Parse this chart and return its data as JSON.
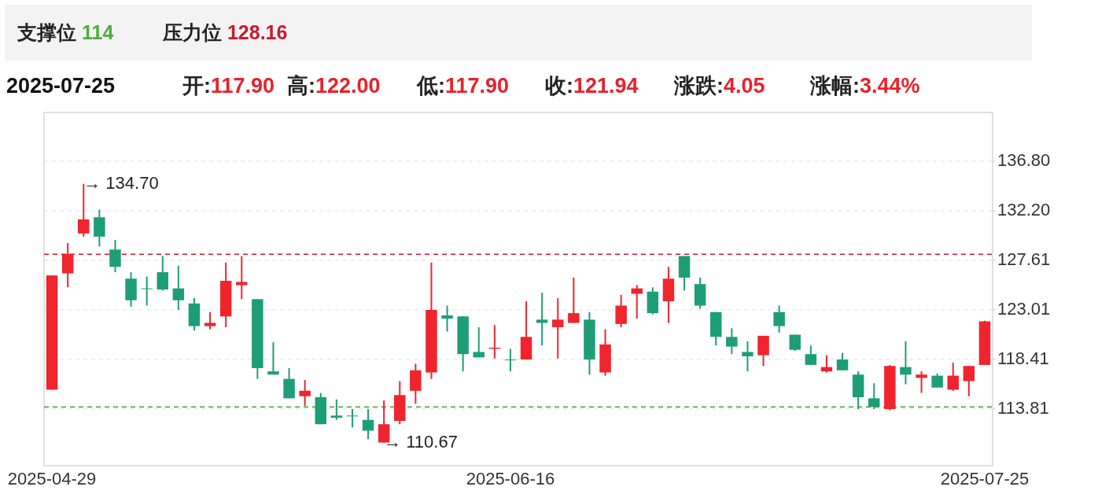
{
  "chart_data": {
    "type": "candlestick",
    "categories": [
      "2025-04-29",
      null,
      null,
      null,
      null,
      null,
      null,
      null,
      null,
      null,
      null,
      null,
      null,
      null,
      null,
      null,
      null,
      null,
      null,
      null,
      null,
      null,
      null,
      null,
      null,
      null,
      null,
      null,
      null,
      "2025-06-16",
      null,
      null,
      null,
      null,
      null,
      null,
      null,
      null,
      null,
      null,
      null,
      null,
      null,
      null,
      null,
      null,
      null,
      null,
      null,
      null,
      null,
      null,
      null,
      null,
      null,
      null,
      null,
      null,
      null,
      "2025-07-25"
    ],
    "ohlc": [
      [
        115.6,
        126.2,
        115.6,
        126.2
      ],
      [
        126.4,
        129.2,
        125.1,
        128.2
      ],
      [
        130.1,
        134.7,
        129.8,
        131.4
      ],
      [
        131.6,
        132.3,
        128.9,
        129.8
      ],
      [
        128.6,
        129.5,
        126.5,
        127.0
      ],
      [
        125.9,
        126.5,
        123.3,
        123.9
      ],
      [
        125.0,
        126.1,
        123.4,
        125.0
      ],
      [
        126.5,
        128.0,
        124.8,
        124.9
      ],
      [
        125.0,
        127.1,
        123.0,
        123.9
      ],
      [
        123.6,
        124.1,
        121.1,
        121.5
      ],
      [
        121.5,
        122.8,
        121.2,
        121.8
      ],
      [
        122.4,
        127.4,
        121.4,
        125.7
      ],
      [
        125.3,
        128.0,
        124.0,
        125.6
      ],
      [
        124.0,
        124.0,
        116.6,
        117.6
      ],
      [
        117.3,
        120.0,
        117.0,
        117.0
      ],
      [
        116.6,
        117.6,
        114.8,
        114.8
      ],
      [
        115.0,
        116.5,
        114.1,
        115.5
      ],
      [
        114.9,
        115.3,
        112.4,
        112.4
      ],
      [
        113.2,
        114.7,
        112.8,
        113.0
      ],
      [
        113.2,
        113.8,
        112.1,
        113.2
      ],
      [
        112.8,
        113.8,
        111.0,
        111.8
      ],
      [
        110.7,
        114.6,
        110.67,
        112.4
      ],
      [
        112.7,
        116.4,
        112.4,
        115.1
      ],
      [
        115.5,
        118.0,
        114.3,
        117.4
      ],
      [
        117.2,
        127.4,
        116.6,
        123.0
      ],
      [
        122.5,
        123.4,
        121.0,
        122.2
      ],
      [
        122.4,
        122.4,
        117.3,
        118.9
      ],
      [
        119.1,
        121.4,
        118.6,
        118.6
      ],
      [
        119.4,
        121.6,
        118.5,
        119.5
      ],
      [
        118.4,
        119.4,
        117.3,
        118.4
      ],
      [
        118.4,
        123.8,
        118.4,
        120.5
      ],
      [
        122.1,
        124.6,
        119.7,
        121.8
      ],
      [
        121.4,
        124.1,
        118.5,
        122.1
      ],
      [
        121.8,
        126.0,
        121.8,
        122.7
      ],
      [
        122.1,
        122.8,
        117.0,
        118.4
      ],
      [
        117.2,
        121.2,
        116.9,
        119.8
      ],
      [
        121.7,
        124.4,
        121.4,
        123.4
      ],
      [
        124.5,
        125.3,
        122.2,
        125.0
      ],
      [
        124.7,
        125.1,
        122.6,
        122.7
      ],
      [
        123.8,
        127.0,
        121.8,
        125.9
      ],
      [
        128.0,
        128.0,
        124.8,
        126.0
      ],
      [
        125.4,
        126.0,
        123.1,
        123.4
      ],
      [
        122.8,
        122.8,
        119.7,
        120.5
      ],
      [
        120.5,
        121.3,
        118.9,
        119.6
      ],
      [
        119.1,
        120.1,
        117.3,
        118.7
      ],
      [
        118.8,
        120.6,
        117.8,
        120.6
      ],
      [
        122.8,
        123.4,
        120.9,
        121.5
      ],
      [
        120.7,
        120.7,
        119.2,
        119.3
      ],
      [
        118.9,
        119.7,
        117.9,
        117.9
      ],
      [
        117.3,
        118.8,
        117.2,
        117.7
      ],
      [
        118.4,
        119.0,
        117.4,
        117.4
      ],
      [
        117.0,
        117.3,
        113.8,
        114.9
      ],
      [
        114.8,
        116.2,
        113.8,
        114.0
      ],
      [
        113.8,
        117.9,
        113.7,
        117.8
      ],
      [
        117.7,
        120.1,
        116.1,
        117.0
      ],
      [
        116.7,
        117.3,
        115.3,
        117.0
      ],
      [
        116.9,
        117.1,
        115.8,
        115.8
      ],
      [
        115.6,
        118.1,
        115.5,
        116.9
      ],
      [
        116.4,
        117.8,
        115.0,
        117.8
      ],
      [
        117.9,
        122.0,
        117.9,
        121.94
      ]
    ],
    "colors": [
      "#f0242d",
      "#f0242d",
      "#f0242d",
      "#1e9e77",
      "#1e9e77",
      "#1e9e77",
      "#1e9e77",
      "#1e9e77",
      "#1e9e77",
      "#1e9e77",
      "#f0242d",
      "#f0242d",
      "#f0242d",
      "#1e9e77",
      "#1e9e77",
      "#1e9e77",
      "#f0242d",
      "#1e9e77",
      "#1e9e77",
      "#1e9e77",
      "#1e9e77",
      "#f0242d",
      "#f0242d",
      "#f0242d",
      "#f0242d",
      "#1e9e77",
      "#1e9e77",
      "#1e9e77",
      "#f0242d",
      "#1e9e77",
      "#f0242d",
      "#1e9e77",
      "#f0242d",
      "#f0242d",
      "#1e9e77",
      "#f0242d",
      "#f0242d",
      "#f0242d",
      "#1e9e77",
      "#f0242d",
      "#1e9e77",
      "#1e9e77",
      "#1e9e77",
      "#1e9e77",
      "#1e9e77",
      "#f0242d",
      "#1e9e77",
      "#1e9e77",
      "#1e9e77",
      "#f0242d",
      "#1e9e77",
      "#1e9e77",
      "#1e9e77",
      "#f0242d",
      "#1e9e77",
      "#f0242d",
      "#1e9e77",
      "#f0242d",
      "#f0242d",
      "#f0242d"
    ],
    "ylim": [
      108.55,
      141.32
    ],
    "yticks": [
      {
        "value": 113.81,
        "label": "113.81"
      },
      {
        "value": 118.41,
        "label": "118.41"
      },
      {
        "value": 123.01,
        "label": "123.01"
      },
      {
        "value": 127.61,
        "label": "127.61"
      },
      {
        "value": 132.2,
        "label": "132.20"
      },
      {
        "value": 136.8,
        "label": "136.80"
      }
    ],
    "grid": "y",
    "ref_lines": [
      {
        "axis": "y",
        "value": 114,
        "color": "#4caf3a",
        "line_style": "dashed"
      },
      {
        "axis": "y",
        "value": 128.16,
        "color": "#c81a2e",
        "line_style": "dashed"
      }
    ],
    "annotations": [
      "支撑位 114",
      "压力位 128.16",
      "2025-07-25",
      "开:117.90",
      "高:122.00",
      "低:117.90",
      "收:121.94",
      "涨跌:4.05",
      "涨幅:3.44%",
      "→ 134.70",
      "→ 110.67"
    ]
  }
}
